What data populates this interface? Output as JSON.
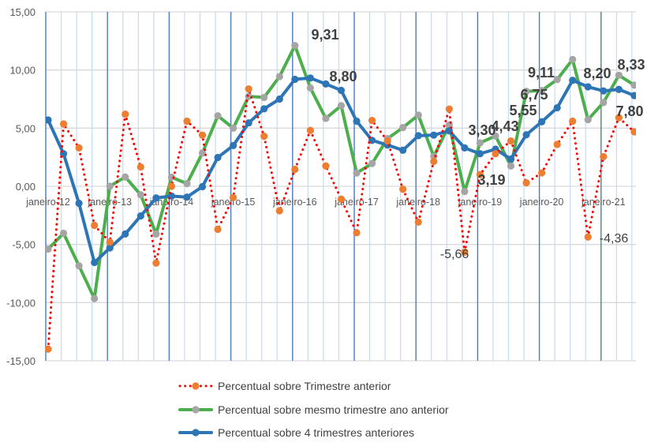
{
  "chart_data": {
    "type": "line",
    "title": "",
    "xlabel": "",
    "ylabel": "",
    "ylim": [
      -15,
      15
    ],
    "yticks": [
      "15,00",
      "10,00",
      "5,00",
      "0,00",
      "-5,00",
      "-10,00",
      "-15,00"
    ],
    "ytick_values": [
      15,
      10,
      5,
      0,
      -5,
      -10,
      -15
    ],
    "x_tick_labels": [
      "janeiro-12",
      "janeiro-13",
      "janeiro-14",
      "janeiro-15",
      "janeiro-16",
      "janeiro-17",
      "janeiro-18",
      "janeiro-19",
      "janeiro-20",
      "janeiro-21"
    ],
    "x_period": "quarterly, 1st quarter 2012 to 3rd quarter 2021",
    "grid": {
      "horizontal": true,
      "vertical_quarters": true,
      "vertical_years_highlighted": true
    },
    "legend_position": "bottom",
    "series": [
      {
        "name": "Percentual sobre Trimestre anterior",
        "line_color": "#ff0000",
        "marker_color": "#ed7d31",
        "line_style": "dotted",
        "values": [
          -14.0,
          5.36,
          3.3,
          -3.36,
          -4.8,
          6.2,
          1.66,
          -6.6,
          0.0,
          5.6,
          4.4,
          -3.7,
          -0.97,
          8.37,
          4.3,
          -2.1,
          1.46,
          4.8,
          1.75,
          -1.1,
          -4.0,
          5.66,
          3.9,
          -0.25,
          -3.08,
          2.14,
          6.64,
          -5.66,
          1.0,
          2.8,
          3.9,
          0.3,
          1.15,
          3.6,
          5.6,
          -4.36,
          2.55,
          5.9,
          4.68
        ]
      },
      {
        "name": "Percentual sobre mesmo trimestre ano anterior",
        "line_color": "#4cae4c",
        "marker_color": "#a5a5a5",
        "line_style": "solid",
        "values": [
          -5.4,
          -4.04,
          -6.84,
          -9.65,
          0.0,
          0.8,
          -0.73,
          -4.1,
          0.78,
          0.23,
          2.86,
          6.06,
          5.0,
          7.73,
          7.64,
          9.43,
          12.1,
          8.46,
          5.84,
          6.93,
          1.14,
          1.96,
          4.1,
          5.05,
          6.12,
          2.57,
          5.27,
          -0.45,
          3.73,
          4.33,
          1.75,
          8.16,
          8.23,
          9.18,
          10.9,
          5.73,
          7.2,
          9.55,
          8.7
        ]
      },
      {
        "name": "Percentual sobre 4 trimestres anteriores",
        "line_color": "#2e75b6",
        "marker_color": "#2e75b6",
        "line_style": "solid",
        "values": [
          5.7,
          2.8,
          -1.46,
          -6.55,
          -5.3,
          -4.1,
          -2.55,
          -1.0,
          -0.84,
          -0.93,
          -0.03,
          2.48,
          3.5,
          5.45,
          6.66,
          7.5,
          9.2,
          9.31,
          8.8,
          8.25,
          5.6,
          3.95,
          3.55,
          3.1,
          4.35,
          4.4,
          4.77,
          3.3,
          2.8,
          3.19,
          2.34,
          4.43,
          5.55,
          6.75,
          9.11,
          8.55,
          8.2,
          8.33,
          7.8
        ]
      }
    ],
    "annotations": [
      {
        "text": "9,31",
        "series": 2,
        "index": 17
      },
      {
        "text": "8,80",
        "series": 2,
        "index": 18
      },
      {
        "text": "3,30",
        "series": 2,
        "index": 27
      },
      {
        "text": "3,19",
        "series": 2,
        "index": 29
      },
      {
        "text": "4,43",
        "series": 2,
        "index": 31
      },
      {
        "text": "5,55",
        "series": 2,
        "index": 32
      },
      {
        "text": "6,75",
        "series": 2,
        "index": 33
      },
      {
        "text": "9,11",
        "series": 2,
        "index": 34
      },
      {
        "text": "8,20",
        "series": 2,
        "index": 36
      },
      {
        "text": "8,33",
        "series": 2,
        "index": 37
      },
      {
        "text": "7,80",
        "series": 2,
        "index": 38
      },
      {
        "text": "-5,66",
        "series": 0,
        "index": 27
      },
      {
        "text": "-4,36",
        "series": 0,
        "index": 35
      }
    ]
  }
}
